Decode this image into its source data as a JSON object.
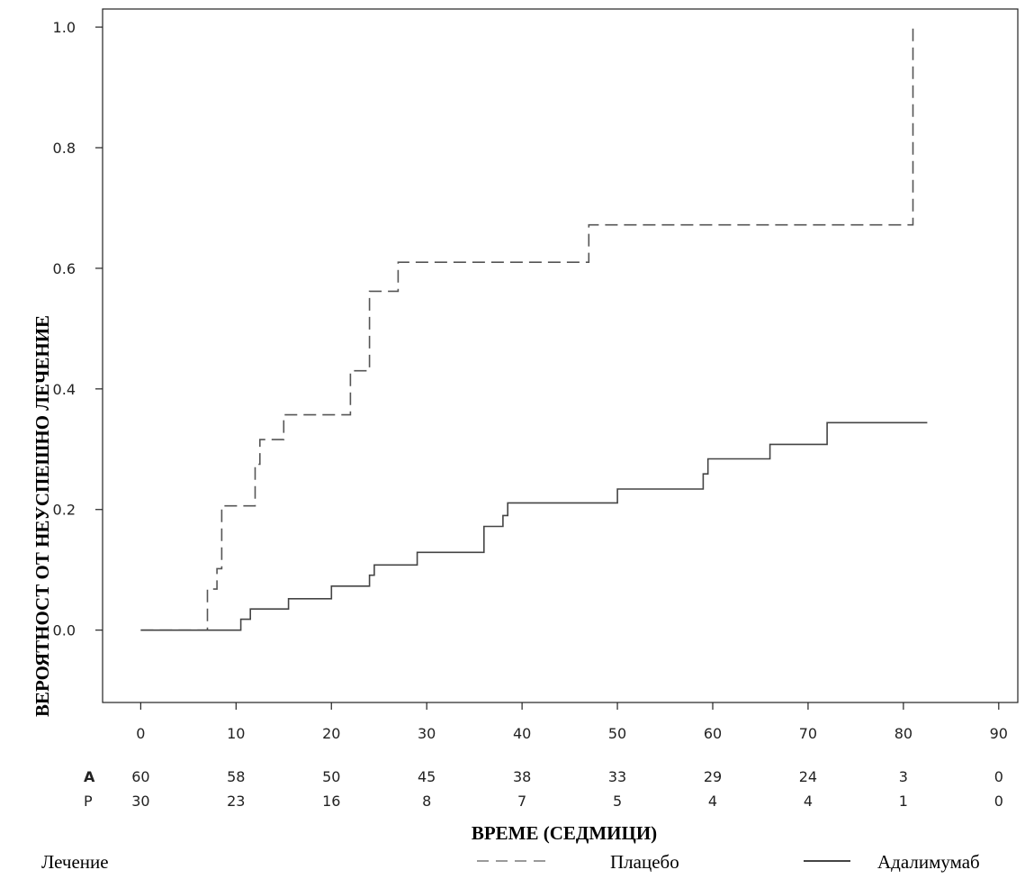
{
  "chart_data": {
    "type": "line",
    "subtype": "kaplan-meier-step",
    "xlabel": "ВРЕМЕ (СЕДМИЦИ)",
    "ylabel": "ВЕРОЯТНОСТ ОТ НЕУСПЕШНО ЛЕЧЕНИЕ",
    "xlim": [
      -4,
      92
    ],
    "ylim": [
      -0.12,
      1.03
    ],
    "x_ticks": [
      0,
      10,
      20,
      30,
      40,
      50,
      60,
      70,
      80,
      90
    ],
    "y_ticks": [
      "0.0",
      "0.2",
      "0.4",
      "0.6",
      "0.8",
      "1.0"
    ],
    "grid": false,
    "legend": {
      "title": "Лечение",
      "placement": "bottom"
    },
    "series": [
      {
        "name": "Плацебо",
        "style": "dashed",
        "color": "#555555",
        "points": [
          [
            0,
            0.0
          ],
          [
            7,
            0.0
          ],
          [
            7,
            0.068
          ],
          [
            8,
            0.068
          ],
          [
            8,
            0.102
          ],
          [
            8.5,
            0.102
          ],
          [
            8.5,
            0.206
          ],
          [
            12,
            0.206
          ],
          [
            12,
            0.275
          ],
          [
            12.5,
            0.275
          ],
          [
            12.5,
            0.316
          ],
          [
            15,
            0.316
          ],
          [
            15,
            0.357
          ],
          [
            22,
            0.357
          ],
          [
            22,
            0.43
          ],
          [
            24,
            0.43
          ],
          [
            24,
            0.562
          ],
          [
            27,
            0.562
          ],
          [
            27,
            0.61
          ],
          [
            47,
            0.61
          ],
          [
            47,
            0.672
          ],
          [
            81,
            0.672
          ],
          [
            81,
            1.0
          ]
        ]
      },
      {
        "name": "Адалимумаб",
        "style": "solid",
        "color": "#444444",
        "points": [
          [
            0,
            0.0
          ],
          [
            10.5,
            0.0
          ],
          [
            10.5,
            0.018
          ],
          [
            11.5,
            0.018
          ],
          [
            11.5,
            0.035
          ],
          [
            15.5,
            0.035
          ],
          [
            15.5,
            0.052
          ],
          [
            20,
            0.052
          ],
          [
            20,
            0.073
          ],
          [
            24,
            0.073
          ],
          [
            24,
            0.091
          ],
          [
            24.5,
            0.091
          ],
          [
            24.5,
            0.108
          ],
          [
            29,
            0.108
          ],
          [
            29,
            0.129
          ],
          [
            36,
            0.129
          ],
          [
            36,
            0.172
          ],
          [
            38,
            0.172
          ],
          [
            38,
            0.19
          ],
          [
            38.5,
            0.19
          ],
          [
            38.5,
            0.211
          ],
          [
            50,
            0.211
          ],
          [
            50,
            0.234
          ],
          [
            59,
            0.234
          ],
          [
            59,
            0.259
          ],
          [
            59.5,
            0.259
          ],
          [
            59.5,
            0.284
          ],
          [
            66,
            0.284
          ],
          [
            66,
            0.308
          ],
          [
            72,
            0.308
          ],
          [
            72,
            0.344
          ],
          [
            82.5,
            0.344
          ]
        ]
      }
    ],
    "risk_table": {
      "rows": [
        {
          "label": "A",
          "values": [
            "60",
            "58",
            "50",
            "45",
            "38",
            "33",
            "29",
            "24",
            "3",
            "0"
          ]
        },
        {
          "label": "P",
          "values": [
            "30",
            "23",
            "16",
            "8",
            "7",
            "5",
            "4",
            "4",
            "1",
            "0"
          ]
        }
      ]
    }
  }
}
